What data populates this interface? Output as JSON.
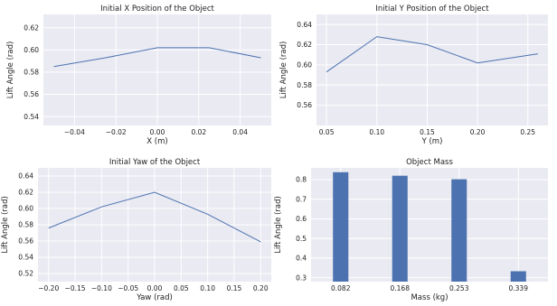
{
  "chart_data": [
    {
      "type": "line",
      "title": "Initial X Position of the Object",
      "xlabel": "X (m)",
      "ylabel": "Lift Angle (rad)",
      "grid": true,
      "x": [
        -0.05,
        -0.025,
        0.0,
        0.025,
        0.05
      ],
      "series": [
        {
          "values": [
            0.585,
            0.593,
            0.602,
            0.602,
            0.593
          ]
        }
      ],
      "xlim": [
        -0.055,
        0.055
      ],
      "ylim": [
        0.532,
        0.632
      ],
      "xticks": [
        -0.04,
        -0.02,
        0.0,
        0.02,
        0.04
      ],
      "xtick_labels": [
        "−0.04",
        "−0.02",
        "0.00",
        "0.02",
        "0.04"
      ],
      "yticks": [
        0.54,
        0.56,
        0.58,
        0.6,
        0.62
      ],
      "ytick_labels": [
        "0.54",
        "0.56",
        "0.58",
        "0.60",
        "0.62"
      ]
    },
    {
      "type": "line",
      "title": "Initial Y Position of the Object",
      "xlabel": "Y (m)",
      "ylabel": "Lift Angle (rad)",
      "grid": true,
      "x": [
        0.05,
        0.1,
        0.15,
        0.2,
        0.26
      ],
      "series": [
        {
          "values": [
            0.593,
            0.628,
            0.62,
            0.602,
            0.611
          ]
        }
      ],
      "xlim": [
        0.04,
        0.27
      ],
      "ylim": [
        0.54,
        0.65
      ],
      "xticks": [
        0.05,
        0.1,
        0.15,
        0.2,
        0.25
      ],
      "xtick_labels": [
        "0.05",
        "0.10",
        "0.15",
        "0.20",
        "0.25"
      ],
      "yticks": [
        0.56,
        0.58,
        0.6,
        0.62,
        0.64
      ],
      "ytick_labels": [
        "0.56",
        "0.58",
        "0.60",
        "0.62",
        "0.64"
      ]
    },
    {
      "type": "line",
      "title": "Initial Yaw of the Object",
      "xlabel": "Yaw (rad)",
      "ylabel": "Lift Angle (rad)",
      "grid": true,
      "x": [
        -0.2,
        -0.1,
        0.0,
        0.1,
        0.2
      ],
      "series": [
        {
          "values": [
            0.576,
            0.602,
            0.62,
            0.593,
            0.559
          ]
        }
      ],
      "xlim": [
        -0.22,
        0.22
      ],
      "ylim": [
        0.51,
        0.65
      ],
      "xticks": [
        -0.2,
        -0.15,
        -0.1,
        -0.05,
        0.0,
        0.05,
        0.1,
        0.15,
        0.2
      ],
      "xtick_labels": [
        "−0.20",
        "−0.15",
        "−0.10",
        "−0.05",
        "0.00",
        "0.05",
        "0.10",
        "0.15",
        "0.20"
      ],
      "yticks": [
        0.52,
        0.54,
        0.56,
        0.58,
        0.6,
        0.62,
        0.64
      ],
      "ytick_labels": [
        "0.52",
        "0.54",
        "0.56",
        "0.58",
        "0.60",
        "0.62",
        "0.64"
      ]
    },
    {
      "type": "bar",
      "title": "Object Mass",
      "xlabel": "Mass (kg)",
      "ylabel": "Lift Angle (rad)",
      "grid": true,
      "categories": [
        "0.082",
        "0.168",
        "0.253",
        "0.339"
      ],
      "values": [
        0.838,
        0.82,
        0.802,
        0.333
      ],
      "ylim": [
        0.28,
        0.86
      ],
      "yticks": [
        0.3,
        0.4,
        0.5,
        0.6,
        0.7,
        0.8
      ],
      "ytick_labels": [
        "0.3",
        "0.4",
        "0.5",
        "0.6",
        "0.7",
        "0.8"
      ]
    }
  ],
  "colors": {
    "line": "#4c72b0",
    "bar": "#4c72b0",
    "plot_bg": "#eaeaf2",
    "grid": "#ffffff"
  }
}
